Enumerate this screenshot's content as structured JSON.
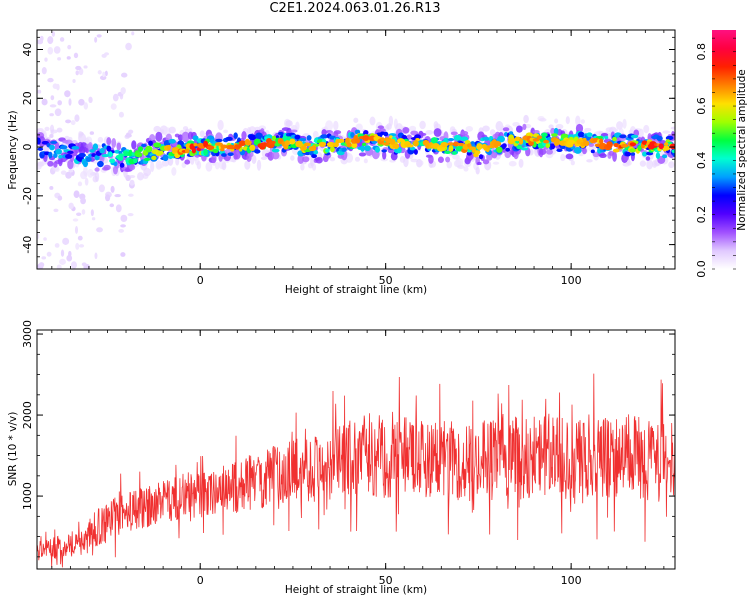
{
  "title": "C2E1.2024.063.01.26.R13",
  "colors": {
    "snr_line": "#f03030",
    "axes": "#000000",
    "colorbar": [
      "#ffffff",
      "#e0c8ff",
      "#a050ff",
      "#5000ff",
      "#0000ff",
      "#00a0ff",
      "#00ffd0",
      "#00ff40",
      "#a0ff00",
      "#ffe000",
      "#ff8000",
      "#ff2000",
      "#ff0040",
      "#ff1080"
    ]
  },
  "chart_data": [
    {
      "type": "heatmap",
      "title": "",
      "xlabel": "Height of straight line (km)",
      "ylabel": "Frequency (Hz)",
      "xlim": [
        -44,
        128
      ],
      "ylim": [
        -50,
        48
      ],
      "x_ticks": [
        "0",
        "50",
        "100"
      ],
      "x_tick_values": [
        0,
        50,
        100
      ],
      "y_ticks": [
        "40",
        "20",
        "0",
        "-20",
        "-40"
      ],
      "y_tick_values": [
        40,
        20,
        0,
        -20,
        -40
      ],
      "description_points": {
        "x": [
          -44,
          -40,
          -35,
          -30,
          -25,
          -20,
          -15,
          -10,
          -5,
          0,
          5,
          10,
          15,
          20,
          25,
          30,
          35,
          40,
          45,
          50,
          55,
          60,
          65,
          70,
          75,
          80,
          85,
          90,
          95,
          100,
          105,
          110,
          115,
          120,
          125,
          128
        ],
        "center_freq": [
          0,
          -1,
          -3,
          -4,
          -3,
          -4,
          -3,
          -1,
          -1,
          0,
          0,
          1,
          1,
          2,
          1,
          0,
          1,
          2,
          3,
          2,
          1,
          1,
          0,
          0,
          -1,
          1,
          2,
          3,
          3,
          2,
          2,
          1,
          1,
          1,
          0,
          0
        ],
        "peak_amplitude": [
          0.3,
          0.4,
          0.45,
          0.4,
          0.45,
          0.5,
          0.6,
          0.7,
          0.8,
          0.9,
          0.75,
          0.8,
          0.85,
          0.8,
          0.7,
          0.75,
          0.7,
          0.75,
          0.8,
          0.75,
          0.7,
          0.75,
          0.7,
          0.8,
          0.7,
          0.75,
          0.7,
          0.8,
          0.75,
          0.7,
          0.75,
          0.8,
          0.85,
          0.85,
          0.9,
          0.85
        ]
      }
    },
    {
      "type": "line",
      "title": "",
      "xlabel": "Height of straight line (km)",
      "ylabel": "SNR (10 * v/v)",
      "xlim": [
        -44,
        128
      ],
      "ylim": [
        100,
        3050
      ],
      "x_ticks": [
        "0",
        "50",
        "100"
      ],
      "x_tick_values": [
        0,
        50,
        100
      ],
      "y_ticks": [
        "1000",
        "2000",
        "3000"
      ],
      "y_tick_values": [
        1000,
        2000,
        3000
      ],
      "series": [
        {
          "x": [
            -44,
            -40,
            -36,
            -32,
            -28,
            -24,
            -20,
            -16,
            -12,
            -8,
            -4,
            0,
            4,
            8,
            12,
            16,
            20,
            24,
            28,
            32,
            36,
            40,
            44,
            48,
            52,
            56,
            60,
            64,
            68,
            72,
            76,
            80,
            84,
            88,
            92,
            96,
            100,
            104,
            108,
            112,
            116,
            120,
            124,
            128
          ],
          "values": [
            300,
            350,
            400,
            450,
            600,
            700,
            800,
            850,
            900,
            950,
            1000,
            1000,
            1050,
            1100,
            1150,
            1200,
            1250,
            1300,
            1350,
            1350,
            1400,
            1450,
            1450,
            1500,
            1450,
            1500,
            1450,
            1500,
            1450,
            1400,
            1450,
            1500,
            1500,
            1450,
            1500,
            1500,
            1450,
            1500,
            1450,
            1500,
            1500,
            1450,
            1450,
            1450
          ],
          "spread": [
            150,
            200,
            250,
            250,
            350,
            400,
            400,
            400,
            400,
            400,
            450,
            450,
            450,
            500,
            550,
            550,
            600,
            600,
            650,
            650,
            700,
            750,
            750,
            800,
            800,
            750,
            750,
            750,
            750,
            750,
            750,
            750,
            800,
            800,
            800,
            800,
            800,
            800,
            800,
            800,
            800,
            800,
            800,
            800
          ]
        }
      ]
    }
  ],
  "colorbar": {
    "label": "Normalized spectral amplitude",
    "ticks": [
      "0.0",
      "0.2",
      "0.4",
      "0.6",
      "0.8"
    ],
    "tick_values": [
      0.0,
      0.2,
      0.4,
      0.6,
      0.8
    ],
    "range": [
      0,
      0.88
    ]
  }
}
